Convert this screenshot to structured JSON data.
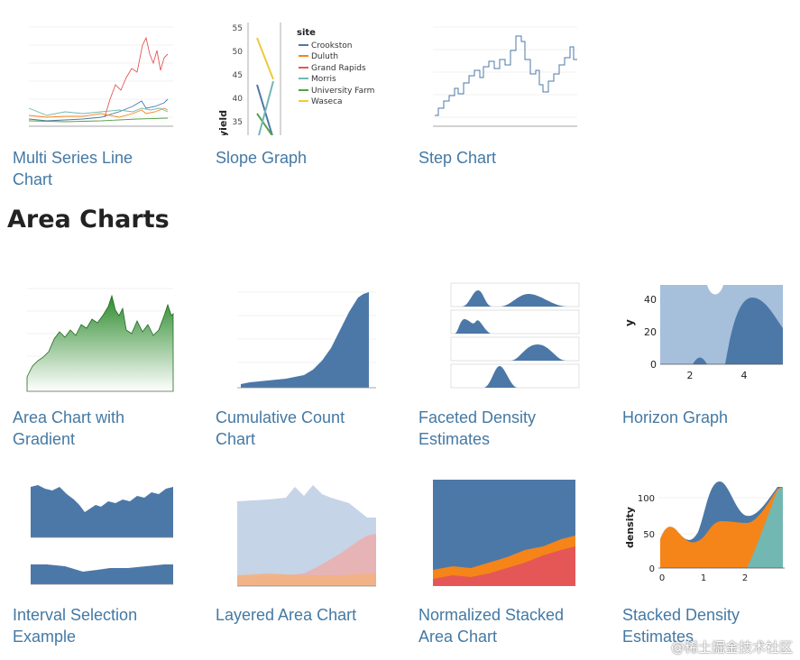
{
  "section_heading": "Area Charts",
  "gallery_top": [
    {
      "caption_lines": [
        "Multi Series Line",
        "Chart"
      ]
    },
    {
      "caption_lines": [
        "Slope Graph"
      ]
    },
    {
      "caption_lines": [
        "Step Chart"
      ]
    }
  ],
  "gallery_area": [
    {
      "caption_lines": [
        "Area Chart with",
        "Gradient"
      ]
    },
    {
      "caption_lines": [
        "Cumulative Count",
        "Chart"
      ]
    },
    {
      "caption_lines": [
        "Faceted Density",
        "Estimates"
      ]
    },
    {
      "caption_lines": [
        "Horizon Graph"
      ]
    },
    {
      "caption_lines": [
        "Interval Selection",
        "Example"
      ]
    },
    {
      "caption_lines": [
        "Layered Area Chart"
      ]
    },
    {
      "caption_lines": [
        "Normalized Stacked",
        "Area Chart"
      ]
    },
    {
      "caption_lines": [
        "Stacked Density",
        "Estimates"
      ]
    }
  ],
  "slope_legend": {
    "title": "site",
    "axis_title": "yield",
    "y_ticks": [
      "55",
      "50",
      "45",
      "40",
      "35"
    ],
    "items": [
      {
        "label": "Crookston",
        "color": "#4c78a8"
      },
      {
        "label": "Duluth",
        "color": "#f58518"
      },
      {
        "label": "Grand Rapids",
        "color": "#e45756"
      },
      {
        "label": "Morris",
        "color": "#72b7b2"
      },
      {
        "label": "University Farm",
        "color": "#54a24b"
      },
      {
        "label": "Waseca",
        "color": "#eeca3b"
      }
    ]
  },
  "horizon": {
    "y_title": "y",
    "y_ticks": [
      "40",
      "20",
      "0"
    ],
    "x_ticks": [
      "2",
      "4"
    ]
  },
  "stacked_density": {
    "y_title": "density",
    "y_ticks": [
      "100",
      "50",
      "0"
    ],
    "x_ticks": [
      "0",
      "1",
      "2"
    ]
  },
  "watermark": "@稀土掘金技术社区",
  "colors": {
    "link": "#4479a4",
    "blue": "#4c78a8",
    "orange": "#f58518",
    "red": "#e45756",
    "teal": "#72b7b2",
    "green": "#54a24b",
    "yellow": "#eeca3b"
  }
}
